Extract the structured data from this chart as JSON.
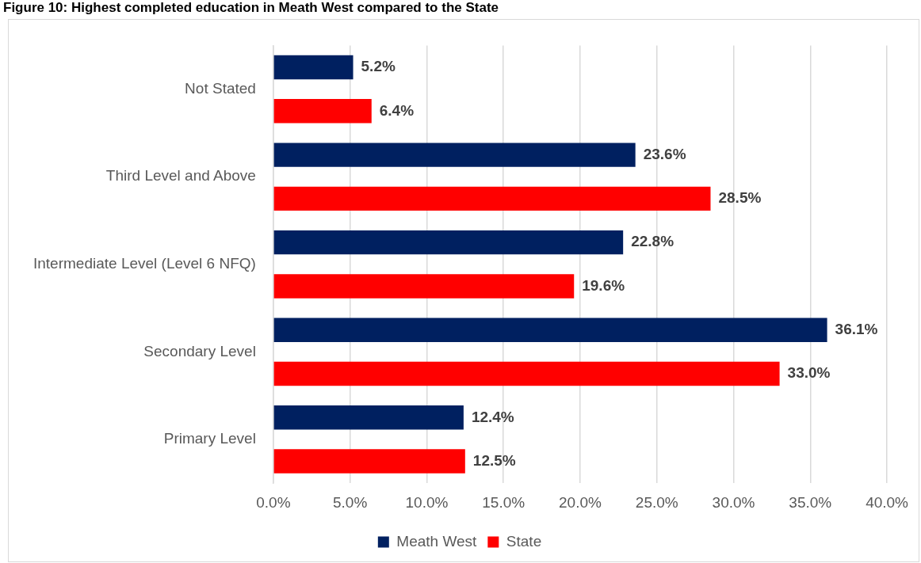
{
  "chart_data": {
    "type": "bar",
    "orientation": "horizontal",
    "title": "Figure 10: Highest completed education in Meath West compared to the State",
    "categories": [
      "Not Stated",
      "Third Level and Above",
      "Intermediate Level (Level 6 NFQ)",
      "Secondary Level",
      "Primary Level"
    ],
    "series": [
      {
        "name": "Meath West",
        "color": "#002060",
        "values": [
          5.2,
          23.6,
          22.8,
          36.1,
          12.4
        ],
        "value_labels": [
          "5.2%",
          "23.6%",
          "22.8%",
          "36.1%",
          "12.4%"
        ]
      },
      {
        "name": "State",
        "color": "#ff0000",
        "values": [
          6.4,
          28.5,
          19.6,
          33.0,
          12.5
        ],
        "value_labels": [
          "6.4%",
          "28.5%",
          "19.6%",
          "33.0%",
          "12.5%"
        ]
      }
    ],
    "xlim": [
      0,
      40
    ],
    "xticks": [
      {
        "value": 0,
        "label": "0.0%"
      },
      {
        "value": 5,
        "label": "5.0%"
      },
      {
        "value": 10,
        "label": "10.0%"
      },
      {
        "value": 15,
        "label": "15.0%"
      },
      {
        "value": 20,
        "label": "20.0%"
      },
      {
        "value": 25,
        "label": "25.0%"
      },
      {
        "value": 30,
        "label": "30.0%"
      },
      {
        "value": 35,
        "label": "35.0%"
      },
      {
        "value": 40,
        "label": "40.0%"
      }
    ],
    "grid": "x",
    "legend": "bottom"
  }
}
